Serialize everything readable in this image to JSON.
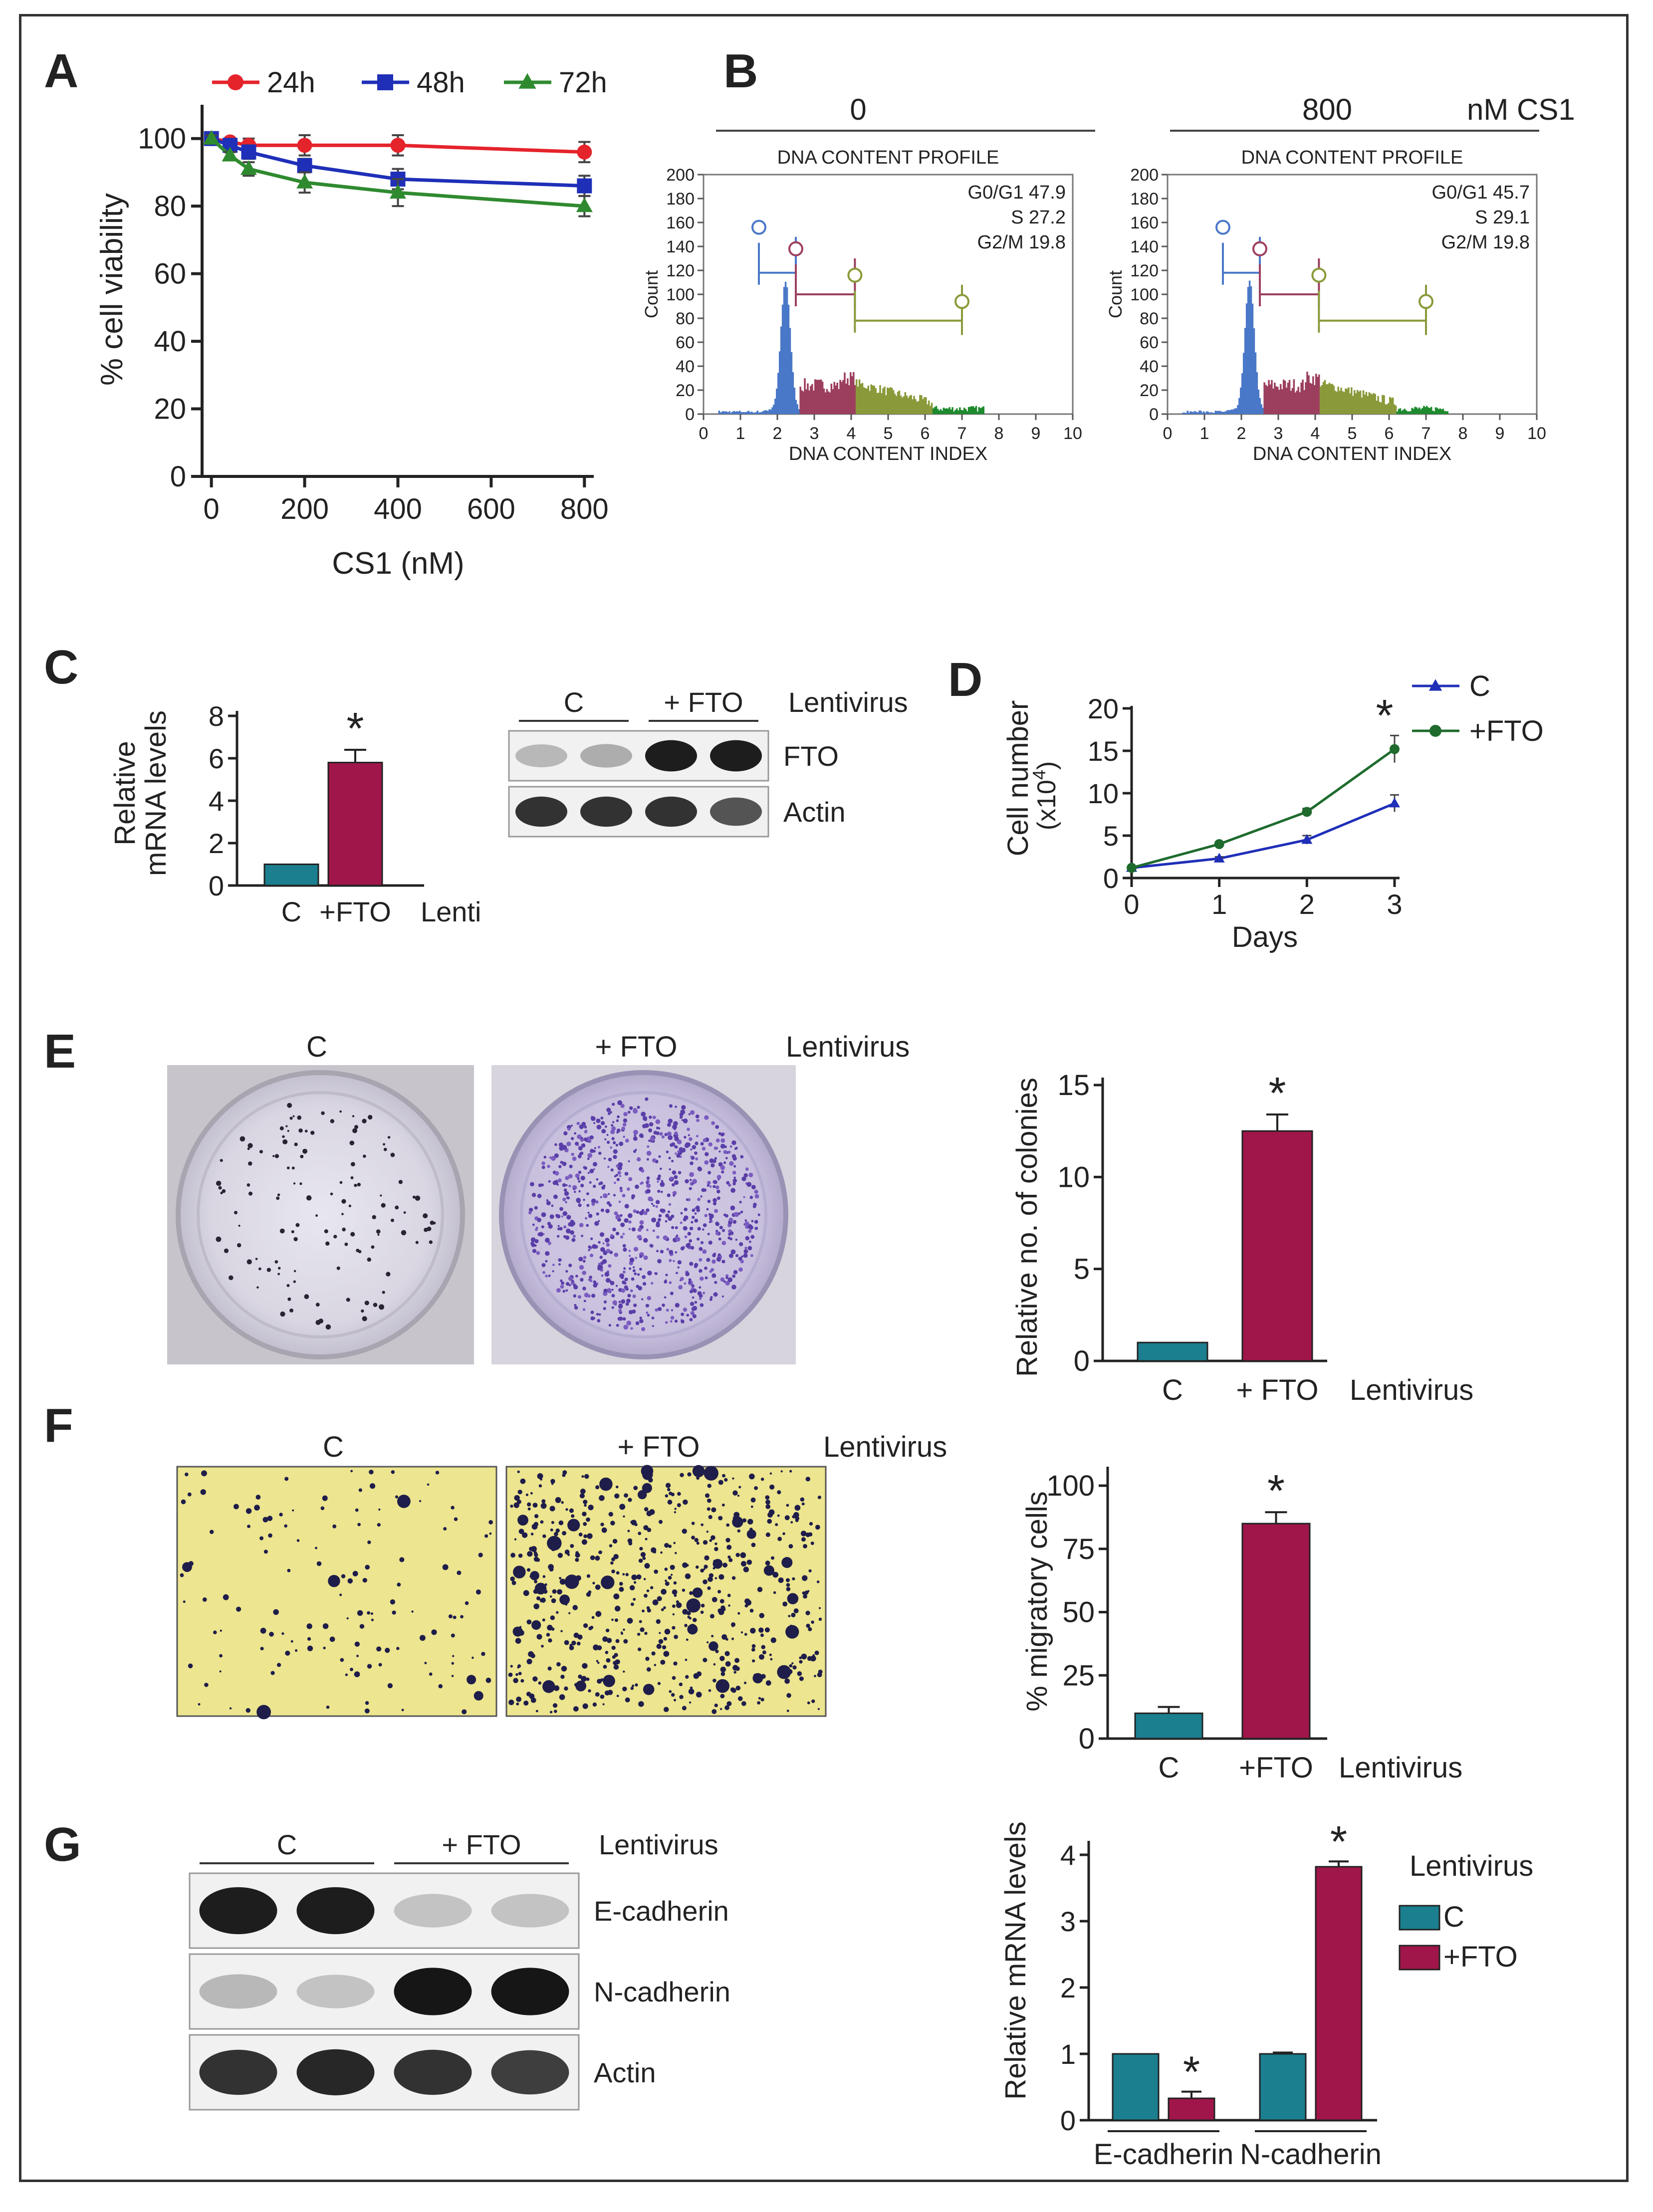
{
  "colors": {
    "red": "#e5232b",
    "blue": "#1f2fb8",
    "green": "#2f8a2f",
    "teal": "#1b7f8f",
    "crimson": "#a0164a",
    "darkgreen": "#1e6b2d",
    "g1": "#4a78c8",
    "s": "#9c3f5e",
    "g2": "#8a9a3a",
    "flowgreen": "#1e8a2e"
  },
  "panels": {
    "A": "A",
    "B": "B",
    "C": "C",
    "D": "D",
    "E": "E",
    "F": "F",
    "G": "G"
  },
  "panelA": {
    "chart_data": {
      "type": "line",
      "xlabel": "CS1 (nM)",
      "ylabel": "% cell viability",
      "xlim": [
        -20,
        820
      ],
      "ylim": [
        0,
        110
      ],
      "xticks": [
        0,
        200,
        400,
        600,
        800
      ],
      "yticks": [
        0,
        20,
        40,
        60,
        80,
        100
      ],
      "xtick_labels": [
        "0",
        "200",
        "400",
        "600",
        "800"
      ],
      "ytick_labels": [
        "0",
        "20",
        "40",
        "60",
        "80",
        "100"
      ],
      "x": [
        0,
        40,
        80,
        200,
        400,
        800
      ],
      "series": [
        {
          "name": "24h",
          "color": "#e5232b",
          "marker": "circle",
          "values": [
            100,
            99,
            98,
            98,
            98,
            96
          ],
          "errors": [
            1,
            1,
            2,
            3,
            3,
            3
          ]
        },
        {
          "name": "48h",
          "color": "#1f2fb8",
          "marker": "square",
          "values": [
            100,
            98,
            96,
            92,
            88,
            86
          ],
          "errors": [
            1,
            1,
            2,
            2,
            3,
            3
          ]
        },
        {
          "name": "72h",
          "color": "#2f8a2f",
          "marker": "triangle",
          "values": [
            100,
            95,
            91,
            87,
            84,
            80
          ],
          "errors": [
            1,
            1,
            2,
            3,
            4,
            3
          ]
        }
      ]
    }
  },
  "panelB": {
    "conditions": [
      "0",
      "800"
    ],
    "unit": "nM CS1",
    "profile_title": "DNA CONTENT PROFILE",
    "xlabel": "DNA CONTENT INDEX",
    "ylabel": "Count",
    "xtick_labels": [
      "0",
      "1",
      "2",
      "3",
      "4",
      "5",
      "6",
      "7",
      "8",
      "9",
      "10"
    ],
    "ytick_labels": [
      "0",
      "20",
      "40",
      "60",
      "80",
      "100",
      "120",
      "140",
      "160",
      "180",
      "200"
    ],
    "left_stats": [
      "G0/G1 47.9",
      "S 27.2",
      "G2/M 19.8"
    ],
    "right_stats": [
      "G0/G1 45.7",
      "S 29.1",
      "G2/M 19.8"
    ],
    "chart_data": {
      "type": "area",
      "title": "DNA CONTENT PROFILE",
      "xlim": [
        0,
        10
      ],
      "ylim": [
        0,
        200
      ],
      "profiles": [
        {
          "name": "0",
          "G0/G1": 47.9,
          "S": 27.2,
          "G2/M": 19.8
        },
        {
          "name": "800 nM CS1",
          "G0/G1": 45.7,
          "S": 29.1,
          "G2/M": 19.8
        }
      ]
    }
  },
  "panelC": {
    "ylabel_line1": "Relative",
    "ylabel_line2": "mRNA levels",
    "ytick_labels": [
      "0",
      "2",
      "4",
      "6",
      "8"
    ],
    "cat_labels": [
      "C",
      "+FTO"
    ],
    "suffix": "Lenti",
    "star": "*",
    "blot_groups": [
      "C",
      "+ FTO"
    ],
    "blot_vector": "Lentivirus",
    "blot_rows": [
      "FTO",
      "Actin"
    ],
    "chart_data": {
      "type": "bar",
      "categories": [
        "C",
        "+FTO"
      ],
      "values": [
        1.0,
        5.8
      ],
      "errors": [
        0,
        0.6
      ],
      "ylim": [
        0,
        8
      ],
      "ylabel": "Relative mRNA levels"
    }
  },
  "panelD": {
    "ylabel_line1": "Cell number",
    "ylabel_line2": "(x10",
    "ylabel_exp": "4",
    "ylabel_close": ")",
    "xlabel": "Days",
    "xtick_labels": [
      "0",
      "1",
      "2",
      "3"
    ],
    "ytick_labels": [
      "0",
      "5",
      "10",
      "15",
      "20"
    ],
    "star": "*",
    "chart_data": {
      "type": "line",
      "x": [
        0,
        1,
        2,
        3
      ],
      "xlabel": "Days",
      "ylabel": "Cell number (x10^4)",
      "ylim": [
        0,
        20
      ],
      "series": [
        {
          "name": "C",
          "color": "#1f2fb8",
          "marker": "triangle",
          "values": [
            1.2,
            2.3,
            4.5,
            8.8
          ],
          "errors": [
            0.1,
            0.2,
            0.5,
            1.0
          ]
        },
        {
          "name": "+FTO",
          "color": "#1e6b2d",
          "marker": "circle",
          "values": [
            1.2,
            4.0,
            7.8,
            15.2
          ],
          "errors": [
            0.1,
            0.2,
            0.4,
            1.6
          ]
        }
      ]
    }
  },
  "panelE": {
    "img_labels": [
      "C",
      "+ FTO"
    ],
    "vector": "Lentivirus",
    "ylabel": "Relative no. of colonies",
    "ytick_labels": [
      "0",
      "5",
      "10",
      "15"
    ],
    "cat_labels": [
      "C",
      "+ FTO"
    ],
    "suffix": "Lentivirus",
    "star": "*",
    "chart_data": {
      "type": "bar",
      "categories": [
        "C",
        "+ FTO"
      ],
      "values": [
        1.0,
        12.5
      ],
      "errors": [
        0,
        0.9
      ],
      "ylim": [
        0,
        15
      ],
      "ylabel": "Relative no. of colonies"
    }
  },
  "panelF": {
    "img_labels": [
      "C",
      "+ FTO"
    ],
    "vector": "Lentivirus",
    "ylabel": "% migratory cells",
    "ytick_labels": [
      "0",
      "25",
      "50",
      "75",
      "100"
    ],
    "cat_labels": [
      "C",
      "+FTO"
    ],
    "suffix": "Lentivirus",
    "star": "*",
    "chart_data": {
      "type": "bar",
      "categories": [
        "C",
        "+FTO"
      ],
      "values": [
        10,
        85
      ],
      "errors": [
        2.5,
        4.5
      ],
      "ylim": [
        0,
        100
      ],
      "ylabel": "% migratory cells"
    }
  },
  "panelG": {
    "blot_groups": [
      "C",
      "+ FTO"
    ],
    "blot_vector": "Lentivirus",
    "blot_rows": [
      "E-cadherin",
      "N-cadherin",
      "Actin"
    ],
    "ylabel": "Relative mRNA levels",
    "ytick_labels": [
      "0",
      "1",
      "2",
      "3",
      "4"
    ],
    "groups": [
      "E-cadherin",
      "N-cadherin"
    ],
    "legend_title": "Lentivirus",
    "legend": [
      "C",
      "+FTO"
    ],
    "star": "*",
    "chart_data": {
      "type": "bar",
      "categories": [
        "E-cadherin",
        "N-cadherin"
      ],
      "series": [
        {
          "name": "C",
          "values": [
            1.0,
            1.0
          ],
          "errors": [
            0,
            0.02
          ]
        },
        {
          "name": "+FTO",
          "values": [
            0.33,
            3.82
          ],
          "errors": [
            0.1,
            0.08
          ]
        }
      ],
      "ylim": [
        0,
        4
      ],
      "ylabel": "Relative mRNA levels"
    }
  }
}
